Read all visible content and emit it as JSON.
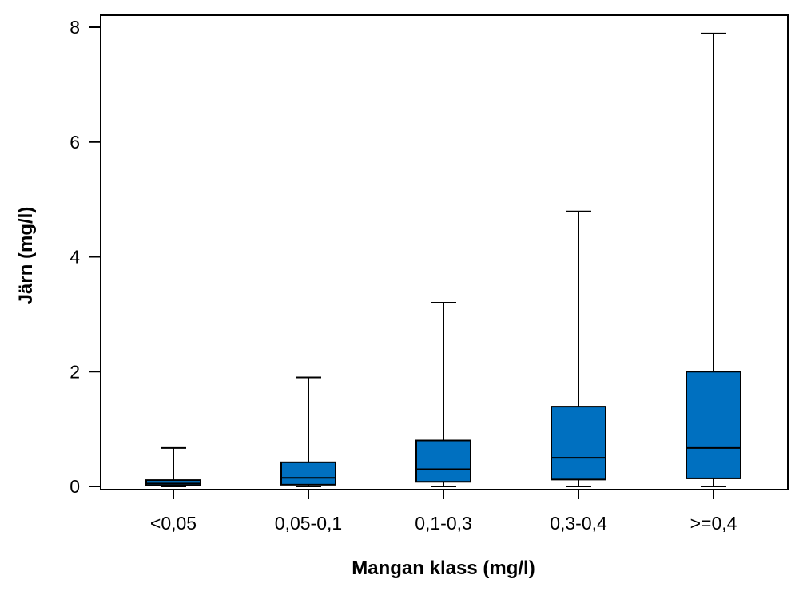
{
  "chart_data": {
    "type": "box",
    "xlabel": "Mangan klass (mg/l)",
    "ylabel": "Järn (mg/l)",
    "ylim": [
      0,
      8
    ],
    "yticks": [
      "0",
      "2",
      "4",
      "6",
      "8"
    ],
    "grid": false,
    "legend": "none",
    "box_color": "#0070C0",
    "categories": [
      "<0,05",
      "0,05-0,1",
      "0,1-0,3",
      "0,3-0,4",
      ">=0,4"
    ],
    "boxes": [
      {
        "category": "<0,05",
        "min": 0.0,
        "q1": 0.02,
        "median": 0.05,
        "q3": 0.11,
        "max": 0.67
      },
      {
        "category": "0,05-0,1",
        "min": 0.0,
        "q1": 0.03,
        "median": 0.15,
        "q3": 0.42,
        "max": 1.9
      },
      {
        "category": "0,1-0,3",
        "min": 0.0,
        "q1": 0.08,
        "median": 0.3,
        "q3": 0.8,
        "max": 3.2
      },
      {
        "category": "0,3-0,4",
        "min": 0.0,
        "q1": 0.12,
        "median": 0.5,
        "q3": 1.39,
        "max": 4.79
      },
      {
        "category": ">=0,4",
        "min": 0.0,
        "q1": 0.14,
        "median": 0.67,
        "q3": 2.0,
        "max": 7.89
      }
    ]
  }
}
